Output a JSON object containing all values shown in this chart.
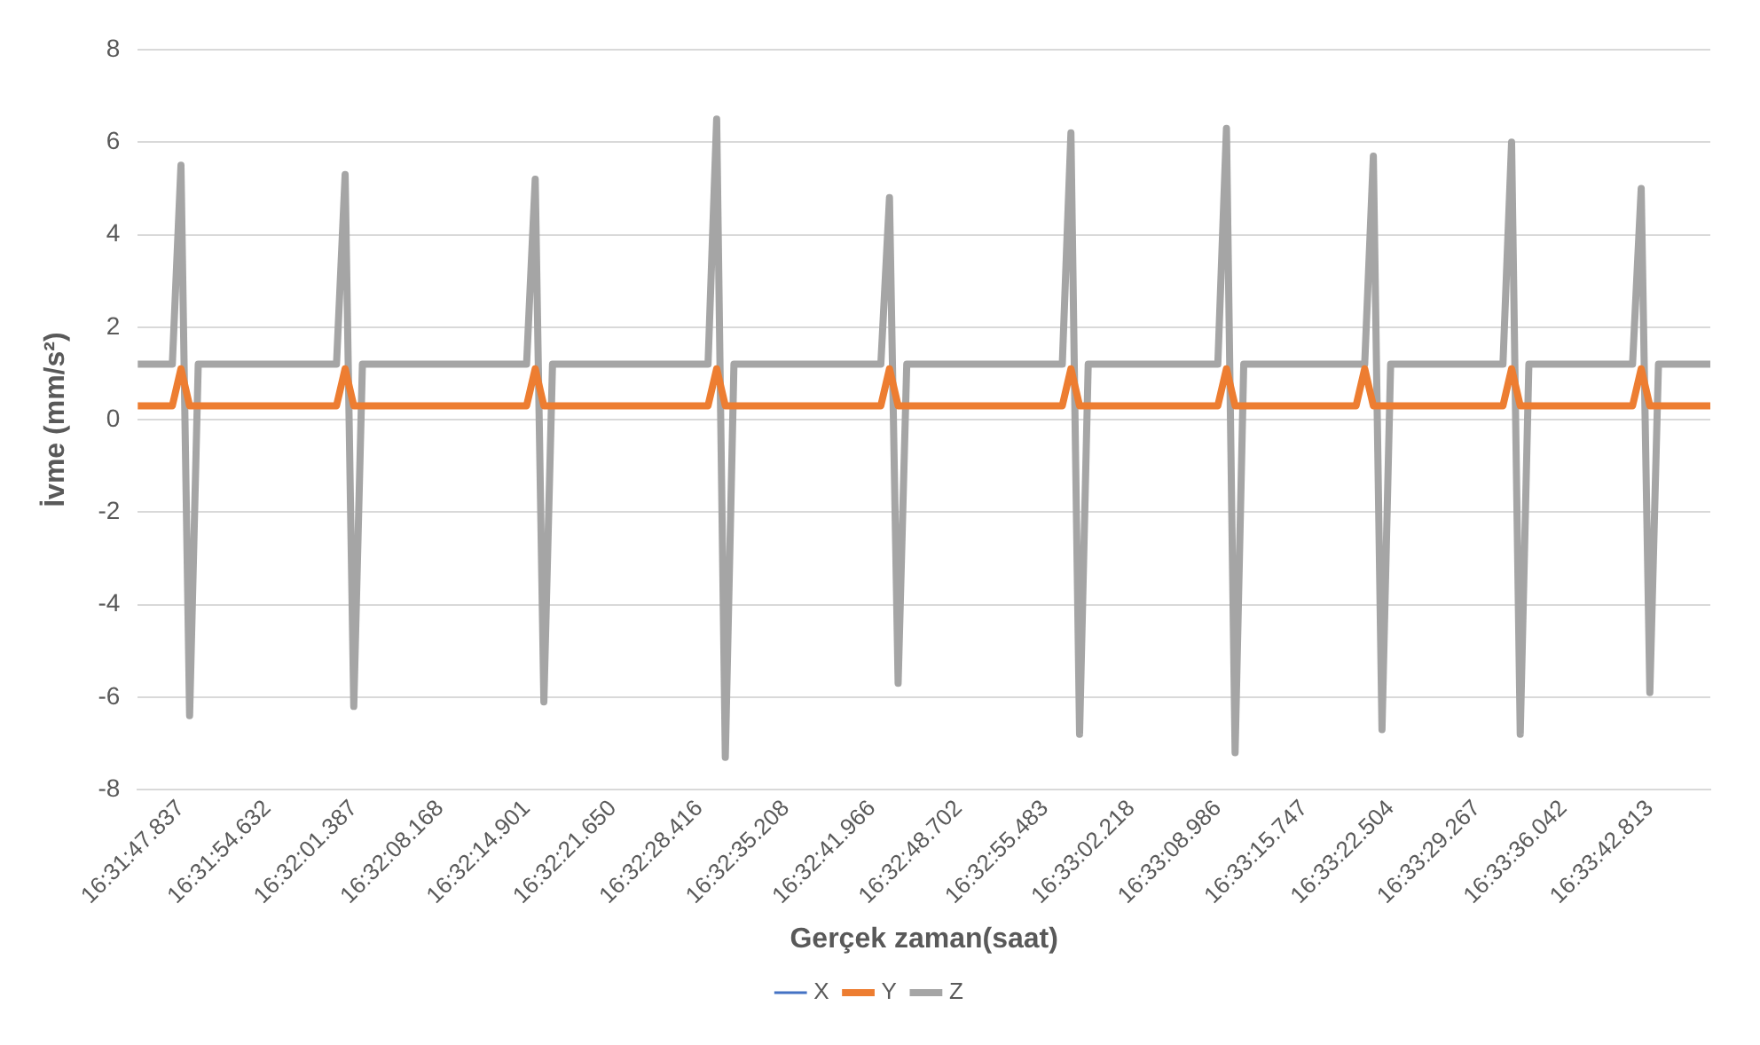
{
  "chart_data": {
    "type": "line",
    "xlabel": "Gerçek zaman(saat)",
    "ylabel": "İvme (mm/s²)",
    "categories": [
      null,
      null,
      null,
      null,
      null,
      "16:31:47.837",
      null,
      null,
      null,
      null,
      null,
      null,
      null,
      null,
      null,
      "16:31:54.632",
      null,
      null,
      null,
      null,
      null,
      null,
      null,
      null,
      null,
      "16:32:01.387",
      null,
      null,
      null,
      null,
      null,
      null,
      null,
      null,
      null,
      "16:32:08.168",
      null,
      null,
      null,
      null,
      null,
      null,
      null,
      null,
      null,
      "16:32:14.901",
      null,
      null,
      null,
      null,
      null,
      null,
      null,
      null,
      null,
      "16:32:21.650",
      null,
      null,
      null,
      null,
      null,
      null,
      null,
      null,
      null,
      "16:32:28.416",
      null,
      null,
      null,
      null,
      null,
      null,
      null,
      null,
      null,
      "16:32:35.208",
      null,
      null,
      null,
      null,
      null,
      null,
      null,
      null,
      null,
      "16:32:41.966",
      null,
      null,
      null,
      null,
      null,
      null,
      null,
      null,
      null,
      "16:32:48.702",
      null,
      null,
      null,
      null,
      null,
      null,
      null,
      null,
      null,
      "16:32:55.483",
      null,
      null,
      null,
      null,
      null,
      null,
      null,
      null,
      null,
      "16:33:02.218",
      null,
      null,
      null,
      null,
      null,
      null,
      null,
      null,
      null,
      "16:33:08.986",
      null,
      null,
      null,
      null,
      null,
      null,
      null,
      null,
      null,
      "16:33:15.747",
      null,
      null,
      null,
      null,
      null,
      null,
      null,
      null,
      null,
      "16:33:22.504",
      null,
      null,
      null,
      null,
      null,
      null,
      null,
      null,
      null,
      "16:33:29.267",
      null,
      null,
      null,
      null,
      null,
      null,
      null,
      null,
      null,
      "16:33:36.042",
      null,
      null,
      null,
      null,
      null,
      null,
      null,
      null,
      null,
      "16:33:42.813",
      null,
      null,
      null,
      null,
      null,
      null,
      null
    ],
    "series": [
      {
        "name": "X",
        "color": "#4472c4",
        "values": [
          null,
          null,
          null,
          null,
          null,
          null,
          null,
          null,
          null,
          null,
          null,
          null,
          null,
          null,
          null,
          null,
          null,
          null,
          null,
          null,
          null,
          null,
          null,
          null,
          null,
          null,
          null,
          null,
          null,
          null,
          null,
          null,
          null,
          null,
          null,
          null,
          null,
          null,
          null,
          null,
          null,
          null,
          null,
          null,
          null,
          null,
          null,
          null,
          null,
          null,
          null,
          null,
          null,
          null,
          null,
          null,
          null,
          null,
          null,
          null,
          null,
          null,
          null,
          null,
          null,
          null,
          null,
          null,
          null,
          null,
          null,
          null,
          null,
          null,
          null,
          null,
          null,
          null,
          null,
          null,
          null,
          null,
          null,
          null,
          null,
          null,
          null,
          null,
          null,
          null,
          null,
          null,
          null,
          null,
          null,
          null,
          null,
          null,
          null,
          null,
          null,
          null,
          null,
          null,
          null,
          null,
          null,
          null,
          null,
          null,
          null,
          null,
          null,
          null,
          null,
          null,
          null,
          null,
          null,
          null,
          null,
          null,
          null,
          null,
          null,
          null,
          null,
          null,
          null,
          null,
          null,
          null,
          null,
          null,
          null,
          null,
          null,
          null,
          null,
          null,
          null,
          null,
          null,
          null,
          null,
          null,
          null,
          null,
          null,
          null,
          null,
          null,
          null,
          null,
          null,
          null,
          null,
          null,
          null,
          null,
          null,
          null,
          null,
          null,
          null,
          null,
          null,
          null,
          null,
          null,
          null,
          null,
          null,
          null,
          null,
          null,
          null,
          null,
          null,
          null,
          null,
          null,
          null
        ]
      },
      {
        "name": "Y",
        "color": "#ed7d31",
        "values": [
          0.3,
          0.3,
          0.3,
          0.3,
          0.3,
          1.1,
          0.3,
          0.3,
          0.3,
          0.3,
          0.3,
          0.3,
          0.3,
          0.3,
          0.3,
          0.3,
          0.3,
          0.3,
          0.3,
          0.3,
          0.3,
          0.3,
          0.3,
          0.3,
          1.1,
          0.3,
          0.3,
          0.3,
          0.3,
          0.3,
          0.3,
          0.3,
          0.3,
          0.3,
          0.3,
          0.3,
          0.3,
          0.3,
          0.3,
          0.3,
          0.3,
          0.3,
          0.3,
          0.3,
          0.3,
          0.3,
          1.1,
          0.3,
          0.3,
          0.3,
          0.3,
          0.3,
          0.3,
          0.3,
          0.3,
          0.3,
          0.3,
          0.3,
          0.3,
          0.3,
          0.3,
          0.3,
          0.3,
          0.3,
          0.3,
          0.3,
          0.3,
          1.1,
          0.3,
          0.3,
          0.3,
          0.3,
          0.3,
          0.3,
          0.3,
          0.3,
          0.3,
          0.3,
          0.3,
          0.3,
          0.3,
          0.3,
          0.3,
          0.3,
          0.3,
          0.3,
          0.3,
          1.1,
          0.3,
          0.3,
          0.3,
          0.3,
          0.3,
          0.3,
          0.3,
          0.3,
          0.3,
          0.3,
          0.3,
          0.3,
          0.3,
          0.3,
          0.3,
          0.3,
          0.3,
          0.3,
          0.3,
          0.3,
          1.1,
          0.3,
          0.3,
          0.3,
          0.3,
          0.3,
          0.3,
          0.3,
          0.3,
          0.3,
          0.3,
          0.3,
          0.3,
          0.3,
          0.3,
          0.3,
          0.3,
          0.3,
          1.1,
          0.3,
          0.3,
          0.3,
          0.3,
          0.3,
          0.3,
          0.3,
          0.3,
          0.3,
          0.3,
          0.3,
          0.3,
          0.3,
          0.3,
          0.3,
          1.1,
          0.3,
          0.3,
          0.3,
          0.3,
          0.3,
          0.3,
          0.3,
          0.3,
          0.3,
          0.3,
          0.3,
          0.3,
          0.3,
          0.3,
          0.3,
          0.3,
          1.1,
          0.3,
          0.3,
          0.3,
          0.3,
          0.3,
          0.3,
          0.3,
          0.3,
          0.3,
          0.3,
          0.3,
          0.3,
          0.3,
          0.3,
          1.1,
          0.3,
          0.3,
          0.3,
          0.3,
          0.3,
          0.3,
          0.3,
          0.3
        ]
      },
      {
        "name": "Z",
        "color": "#a5a5a5",
        "values": [
          1.2,
          1.2,
          1.2,
          1.2,
          1.2,
          5.5,
          -6.4,
          1.2,
          1.2,
          1.2,
          1.2,
          1.2,
          1.2,
          1.2,
          1.2,
          1.2,
          1.2,
          1.2,
          1.2,
          1.2,
          1.2,
          1.2,
          1.2,
          1.2,
          5.3,
          -6.2,
          1.2,
          1.2,
          1.2,
          1.2,
          1.2,
          1.2,
          1.2,
          1.2,
          1.2,
          1.2,
          1.2,
          1.2,
          1.2,
          1.2,
          1.2,
          1.2,
          1.2,
          1.2,
          1.2,
          1.2,
          5.2,
          -6.1,
          1.2,
          1.2,
          1.2,
          1.2,
          1.2,
          1.2,
          1.2,
          1.2,
          1.2,
          1.2,
          1.2,
          1.2,
          1.2,
          1.2,
          1.2,
          1.2,
          1.2,
          1.2,
          1.2,
          6.5,
          -7.3,
          1.2,
          1.2,
          1.2,
          1.2,
          1.2,
          1.2,
          1.2,
          1.2,
          1.2,
          1.2,
          1.2,
          1.2,
          1.2,
          1.2,
          1.2,
          1.2,
          1.2,
          1.2,
          4.8,
          -5.7,
          1.2,
          1.2,
          1.2,
          1.2,
          1.2,
          1.2,
          1.2,
          1.2,
          1.2,
          1.2,
          1.2,
          1.2,
          1.2,
          1.2,
          1.2,
          1.2,
          1.2,
          1.2,
          1.2,
          6.2,
          -6.8,
          1.2,
          1.2,
          1.2,
          1.2,
          1.2,
          1.2,
          1.2,
          1.2,
          1.2,
          1.2,
          1.2,
          1.2,
          1.2,
          1.2,
          1.2,
          1.2,
          6.3,
          -7.2,
          1.2,
          1.2,
          1.2,
          1.2,
          1.2,
          1.2,
          1.2,
          1.2,
          1.2,
          1.2,
          1.2,
          1.2,
          1.2,
          1.2,
          1.2,
          5.7,
          -6.7,
          1.2,
          1.2,
          1.2,
          1.2,
          1.2,
          1.2,
          1.2,
          1.2,
          1.2,
          1.2,
          1.2,
          1.2,
          1.2,
          1.2,
          6.0,
          -6.8,
          1.2,
          1.2,
          1.2,
          1.2,
          1.2,
          1.2,
          1.2,
          1.2,
          1.2,
          1.2,
          1.2,
          1.2,
          1.2,
          5.0,
          -5.9,
          1.2,
          1.2,
          1.2,
          1.2,
          1.2,
          1.2,
          1.2
        ]
      }
    ],
    "ylim": [
      -8,
      8
    ],
    "yticks": [
      -8,
      -6,
      -4,
      -2,
      0,
      2,
      4,
      6,
      8
    ],
    "grid": "y",
    "legend": "bottom",
    "marker": "none",
    "line_style": "solid"
  }
}
